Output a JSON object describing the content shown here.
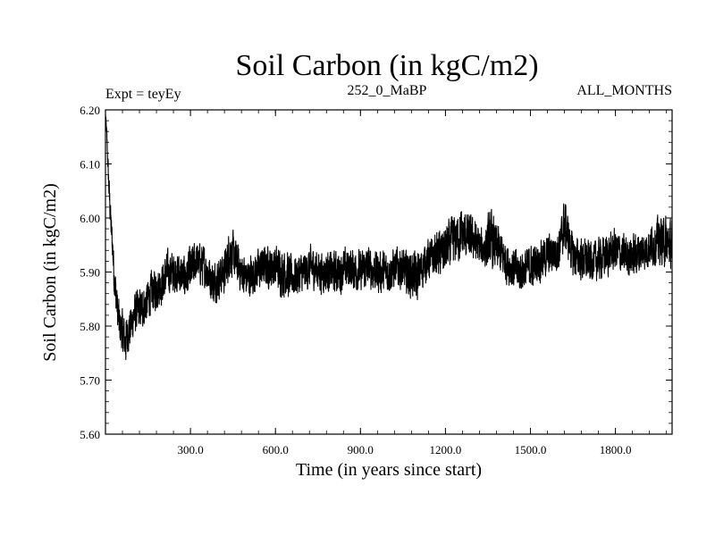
{
  "chart_data": {
    "type": "line",
    "title": "Soil Carbon (in kgC/m2)",
    "subtitle_left": "Expt = teyEy",
    "subtitle_center": "252_0_MaBP",
    "subtitle_right": "ALL_MONTHS",
    "xlabel": "Time (in years since start)",
    "ylabel": "Soil Carbon (in kgC/m2)",
    "xlim": [
      0,
      2000
    ],
    "ylim": [
      5.6,
      6.2
    ],
    "x_ticks": [
      300,
      600,
      900,
      1200,
      1500,
      1800
    ],
    "x_tick_labels": [
      "300.0",
      "600.0",
      "900.0",
      "1200.0",
      "1500.0",
      "1800.0"
    ],
    "y_ticks": [
      5.6,
      5.7,
      5.8,
      5.9,
      6.0,
      6.1,
      6.2
    ],
    "y_tick_labels": [
      "5.60",
      "5.70",
      "5.80",
      "5.90",
      "6.00",
      "6.10",
      "6.20"
    ],
    "grid": false,
    "line_color": "#000000",
    "series": [
      {
        "name": "Soil Carbon",
        "x": [
          0,
          5,
          10,
          15,
          20,
          25,
          30,
          40,
          50,
          60,
          70,
          80,
          90,
          100,
          120,
          140,
          160,
          180,
          200,
          220,
          250,
          280,
          300,
          320,
          350,
          380,
          400,
          420,
          440,
          460,
          480,
          500,
          530,
          560,
          600,
          630,
          660,
          700,
          730,
          760,
          800,
          830,
          860,
          900,
          930,
          960,
          1000,
          1030,
          1060,
          1100,
          1130,
          1160,
          1200,
          1230,
          1260,
          1300,
          1330,
          1360,
          1400,
          1430,
          1460,
          1500,
          1530,
          1560,
          1600,
          1620,
          1650,
          1700,
          1730,
          1760,
          1800,
          1830,
          1860,
          1900,
          1930,
          1960,
          2000
        ],
        "center": [
          6.19,
          6.15,
          6.08,
          6.03,
          5.98,
          5.95,
          5.9,
          5.84,
          5.8,
          5.79,
          5.77,
          5.79,
          5.8,
          5.82,
          5.83,
          5.84,
          5.86,
          5.87,
          5.88,
          5.9,
          5.9,
          5.89,
          5.9,
          5.92,
          5.91,
          5.88,
          5.89,
          5.9,
          5.94,
          5.92,
          5.9,
          5.89,
          5.9,
          5.91,
          5.91,
          5.9,
          5.89,
          5.9,
          5.91,
          5.9,
          5.9,
          5.9,
          5.91,
          5.9,
          5.91,
          5.9,
          5.9,
          5.91,
          5.9,
          5.89,
          5.92,
          5.93,
          5.94,
          5.96,
          5.97,
          5.96,
          5.94,
          5.96,
          5.93,
          5.91,
          5.9,
          5.91,
          5.92,
          5.93,
          5.94,
          5.99,
          5.93,
          5.92,
          5.92,
          5.93,
          5.94,
          5.93,
          5.93,
          5.94,
          5.95,
          5.96,
          5.95
        ],
        "amplitude": [
          0.01,
          0.02,
          0.03,
          0.04,
          0.04,
          0.04,
          0.05,
          0.05,
          0.05,
          0.05,
          0.06,
          0.05,
          0.05,
          0.05,
          0.05,
          0.05,
          0.05,
          0.05,
          0.05,
          0.05,
          0.05,
          0.05,
          0.06,
          0.05,
          0.05,
          0.05,
          0.05,
          0.05,
          0.06,
          0.05,
          0.05,
          0.05,
          0.05,
          0.05,
          0.05,
          0.06,
          0.05,
          0.05,
          0.05,
          0.05,
          0.05,
          0.05,
          0.05,
          0.05,
          0.05,
          0.05,
          0.05,
          0.05,
          0.05,
          0.06,
          0.05,
          0.05,
          0.06,
          0.06,
          0.06,
          0.05,
          0.05,
          0.07,
          0.05,
          0.05,
          0.05,
          0.05,
          0.05,
          0.05,
          0.05,
          0.06,
          0.05,
          0.05,
          0.05,
          0.05,
          0.05,
          0.05,
          0.05,
          0.05,
          0.05,
          0.06,
          0.06
        ]
      }
    ]
  }
}
